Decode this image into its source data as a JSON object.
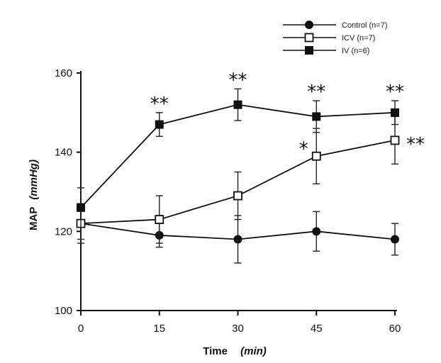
{
  "chart_data": {
    "type": "line",
    "xlabel": "Time",
    "xlabel_unit": "(min)",
    "ylabel": "MAP",
    "ylabel_unit": "(mmHg)",
    "x": [
      0,
      15,
      30,
      45,
      60
    ],
    "xlim": [
      0,
      60
    ],
    "ylim": [
      100,
      160
    ],
    "xticks": [
      "0",
      "15",
      "30",
      "45",
      "60"
    ],
    "yticks": [
      "100",
      "120",
      "140",
      "160"
    ],
    "grid": false,
    "legend_position": "top-right",
    "series": [
      {
        "name": "Control (n=7)",
        "marker": "filled-circle",
        "values": [
          122,
          119,
          118,
          120,
          118
        ],
        "error": [
          5,
          3,
          6,
          5,
          4
        ],
        "significance": [
          "",
          "",
          "",
          "",
          ""
        ]
      },
      {
        "name": "ICV (n=7)",
        "marker": "open-square",
        "values": [
          122,
          123,
          129,
          139,
          143
        ],
        "error": [
          4,
          6,
          6,
          7,
          6
        ],
        "significance": [
          "",
          "",
          "",
          "*",
          "**"
        ]
      },
      {
        "name": "IV (n=6)",
        "marker": "filled-square",
        "values": [
          126,
          147,
          152,
          149,
          150
        ],
        "error": [
          5,
          3,
          4,
          4,
          3
        ],
        "significance": [
          "",
          "**",
          "**",
          "**",
          "**"
        ]
      }
    ]
  }
}
